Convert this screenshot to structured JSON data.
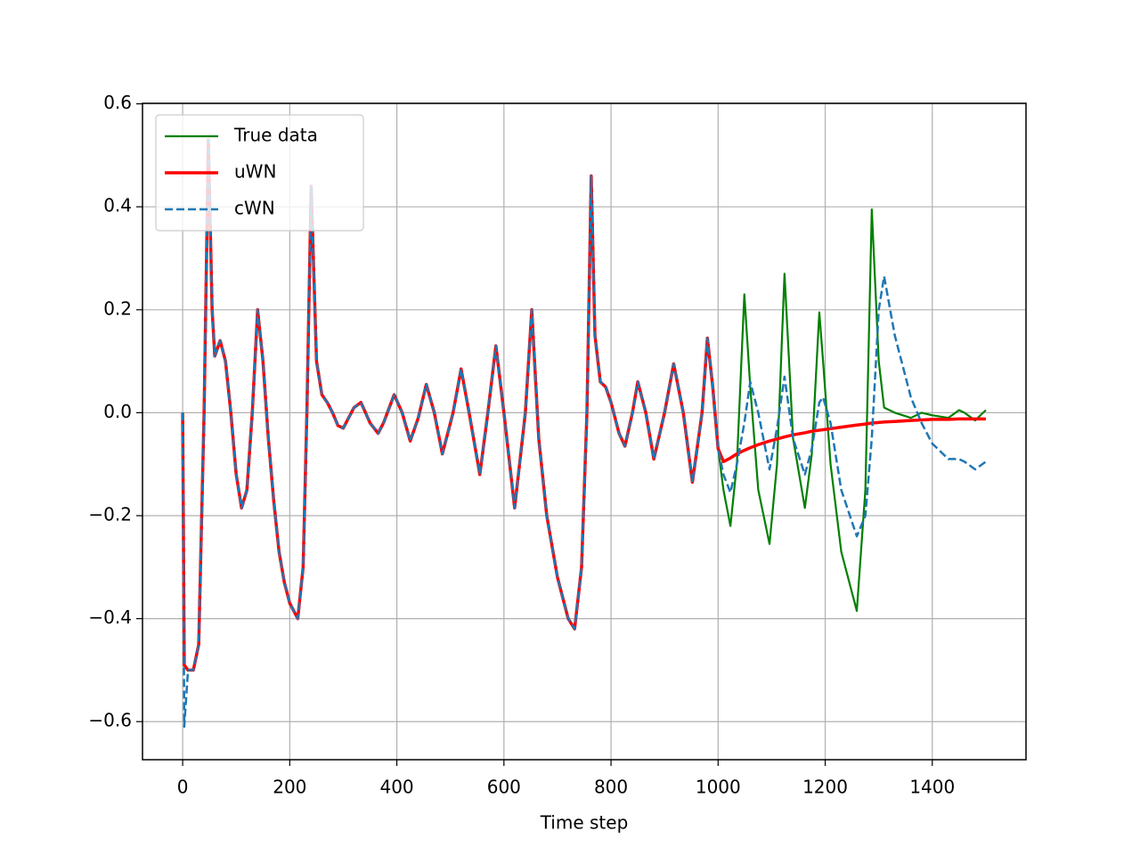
{
  "chart_data": {
    "type": "line",
    "xlabel": "Time step",
    "x": [
      0,
      3,
      10,
      20,
      30,
      40,
      48,
      55,
      60,
      70,
      80,
      90,
      100,
      110,
      120,
      130,
      140,
      150,
      160,
      170,
      180,
      190,
      200,
      210,
      215,
      225,
      232,
      240,
      250,
      260,
      270,
      280,
      290,
      300,
      320,
      333,
      350,
      365,
      375,
      395,
      410,
      425,
      440,
      455,
      470,
      485,
      505,
      520,
      535,
      555,
      570,
      585,
      600,
      620,
      640,
      652,
      665,
      680,
      700,
      720,
      732,
      745,
      755,
      763,
      770,
      780,
      790,
      800,
      815,
      826,
      840,
      850,
      865,
      880,
      900,
      917,
      935,
      952,
      970,
      980,
      990,
      1000,
      1010,
      1023,
      1035,
      1049,
      1060,
      1075,
      1096,
      1110,
      1124,
      1140,
      1162,
      1175,
      1189,
      1196,
      1210,
      1230,
      1259,
      1275,
      1287,
      1300,
      1310,
      1330,
      1360,
      1380,
      1400,
      1430,
      1450,
      1460,
      1480,
      1500
    ],
    "series": [
      {
        "name": "True data",
        "color": "#008000",
        "dash": false,
        "width": 2.2,
        "values": [
          0,
          -0.49,
          -0.5,
          -0.5,
          -0.45,
          0,
          0.53,
          0.2,
          0.11,
          0.14,
          0.1,
          0,
          -0.12,
          -0.185,
          -0.15,
          0,
          0.2,
          0.1,
          -0.05,
          -0.17,
          -0.27,
          -0.33,
          -0.37,
          -0.39,
          -0.4,
          -0.3,
          0,
          0.44,
          0.1,
          0.035,
          0.02,
          0,
          -0.025,
          -0.03,
          0.01,
          0.02,
          -0.02,
          -0.04,
          -0.02,
          0.035,
          0,
          -0.055,
          -0.01,
          0.055,
          0,
          -0.08,
          0,
          0.085,
          0,
          -0.12,
          0,
          0.13,
          0,
          -0.185,
          0,
          0.2,
          -0.05,
          -0.2,
          -0.32,
          -0.4,
          -0.42,
          -0.3,
          0,
          0.46,
          0.15,
          0.06,
          0.05,
          0.02,
          -0.04,
          -0.065,
          0,
          0.06,
          0,
          -0.09,
          0,
          0.095,
          0,
          -0.135,
          0,
          0.145,
          0.05,
          -0.07,
          -0.15,
          -0.22,
          -0.1,
          0.23,
          0.05,
          -0.15,
          -0.255,
          -0.1,
          0.27,
          -0.05,
          -0.185,
          -0.08,
          0.195,
          0.1,
          -0.1,
          -0.27,
          -0.385,
          -0.15,
          0.395,
          0.1,
          0.01,
          0,
          -0.01,
          0,
          -0.005,
          -0.01,
          0.005,
          0,
          -0.015,
          0.005
        ]
      },
      {
        "name": "uWN",
        "color": "#ff0000",
        "dash": false,
        "width": 3.5,
        "values": [
          0,
          -0.49,
          -0.5,
          -0.5,
          -0.45,
          0,
          0.53,
          0.2,
          0.11,
          0.14,
          0.1,
          0,
          -0.12,
          -0.185,
          -0.15,
          0,
          0.2,
          0.1,
          -0.05,
          -0.17,
          -0.27,
          -0.33,
          -0.37,
          -0.39,
          -0.4,
          -0.3,
          0,
          0.44,
          0.1,
          0.035,
          0.02,
          0,
          -0.025,
          -0.03,
          0.01,
          0.02,
          -0.02,
          -0.04,
          -0.02,
          0.035,
          0,
          -0.055,
          -0.01,
          0.055,
          0,
          -0.08,
          0,
          0.085,
          0,
          -0.12,
          0,
          0.13,
          0,
          -0.185,
          0,
          0.2,
          -0.05,
          -0.2,
          -0.32,
          -0.4,
          -0.42,
          -0.3,
          0,
          0.46,
          0.15,
          0.06,
          0.05,
          0.02,
          -0.04,
          -0.065,
          0,
          0.06,
          0,
          -0.09,
          0,
          0.095,
          0,
          -0.135,
          0,
          0.145,
          0.05,
          -0.07,
          -0.095,
          -0.088,
          -0.08,
          -0.073,
          -0.068,
          -0.062,
          -0.055,
          -0.051,
          -0.047,
          -0.043,
          -0.039,
          -0.036,
          -0.034,
          -0.033,
          -0.031,
          -0.028,
          -0.024,
          -0.022,
          -0.02,
          -0.019,
          -0.018,
          -0.017,
          -0.015,
          -0.014,
          -0.013,
          -0.013,
          -0.012,
          -0.012,
          -0.012,
          -0.012
        ]
      },
      {
        "name": "cWN",
        "color": "#1f77b4",
        "dash": true,
        "width": 2.5,
        "values": [
          0,
          -0.61,
          -0.5,
          -0.5,
          -0.45,
          0,
          0.53,
          0.2,
          0.11,
          0.14,
          0.1,
          0,
          -0.12,
          -0.185,
          -0.15,
          0,
          0.2,
          0.1,
          -0.05,
          -0.17,
          -0.27,
          -0.33,
          -0.37,
          -0.39,
          -0.4,
          -0.3,
          0,
          0.44,
          0.1,
          0.035,
          0.02,
          0,
          -0.025,
          -0.03,
          0.01,
          0.02,
          -0.02,
          -0.04,
          -0.02,
          0.035,
          0,
          -0.055,
          -0.01,
          0.055,
          0,
          -0.08,
          0,
          0.085,
          0,
          -0.12,
          0,
          0.13,
          0,
          -0.185,
          0,
          0.2,
          -0.05,
          -0.2,
          -0.32,
          -0.4,
          -0.42,
          -0.3,
          0,
          0.46,
          0.15,
          0.06,
          0.05,
          0.02,
          -0.04,
          -0.065,
          0,
          0.06,
          0,
          -0.09,
          0,
          0.095,
          0,
          -0.135,
          0,
          0.145,
          0.05,
          -0.07,
          -0.12,
          -0.155,
          -0.1,
          -0.02,
          0.06,
          0,
          -0.11,
          -0.03,
          0.07,
          -0.05,
          -0.12,
          -0.07,
          0.02,
          0.03,
          -0.02,
          -0.15,
          -0.24,
          -0.2,
          -0.05,
          0.2,
          0.265,
          0.15,
          0.03,
          -0.02,
          -0.06,
          -0.09,
          -0.09,
          -0.095,
          -0.11,
          -0.095
        ]
      }
    ],
    "xlim": [
      -75,
      1575
    ],
    "ylim": [
      -0.674,
      0.601
    ],
    "xticks": [
      0,
      200,
      400,
      600,
      800,
      1000,
      1200,
      1400
    ],
    "yticks": [
      {
        "value": -0.6,
        "label": "−0.6"
      },
      {
        "value": -0.4,
        "label": "−0.4"
      },
      {
        "value": -0.2,
        "label": "−0.2"
      },
      {
        "value": 0,
        "label": "0.0"
      },
      0.2,
      0.4,
      0.6
    ],
    "grid": true,
    "legend": "upper left"
  }
}
